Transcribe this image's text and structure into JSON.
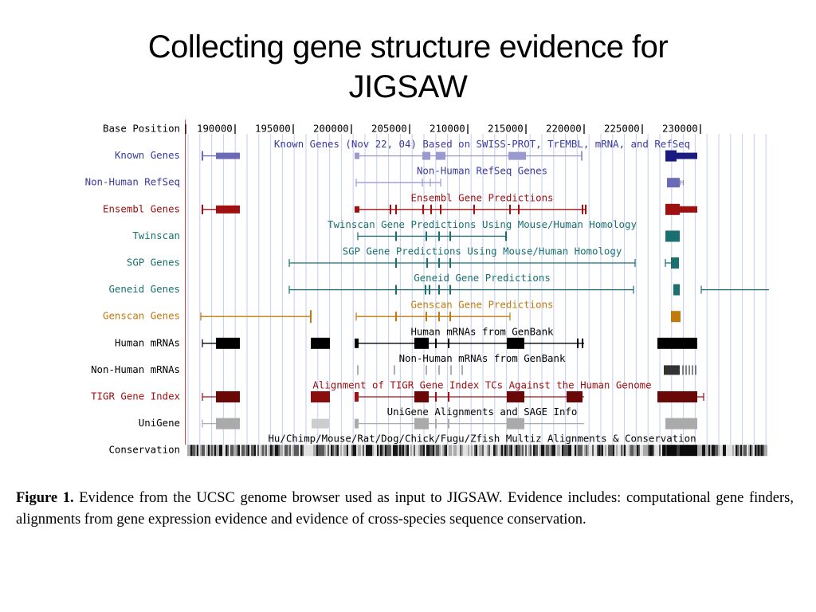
{
  "title": {
    "line1": "Collecting gene structure evidence for",
    "line2": "JIGSAW"
  },
  "browser": {
    "base_position_label": "Base Position",
    "positions": [
      "190000",
      "195000",
      "200000",
      "205000",
      "210000",
      "215000",
      "220000",
      "225000",
      "230000"
    ],
    "tracks": [
      {
        "key": "known",
        "label": "Known Genes",
        "color": "#3a3a9e",
        "center": "Known Genes (Nov 22, 04) Based on SWISS-PROT, TrEMBL, mRNA, and RefSeq"
      },
      {
        "key": "nonhuman_refseq",
        "label": "Non-Human RefSeq",
        "color": "#3a3a9e",
        "center": "Non-Human RefSeq Genes"
      },
      {
        "key": "ensembl",
        "label": "Ensembl Genes",
        "color": "#a01010",
        "center": "Ensembl Gene Predictions"
      },
      {
        "key": "twinscan",
        "label": "Twinscan",
        "color": "#1a7070",
        "center": "Twinscan Gene Predictions Using Mouse/Human Homology"
      },
      {
        "key": "sgp",
        "label": "SGP Genes",
        "color": "#1a7070",
        "center": "SGP Gene Predictions Using Mouse/Human Homology"
      },
      {
        "key": "geneid",
        "label": "Geneid Genes",
        "color": "#1a7070",
        "center": "Geneid Gene Predictions"
      },
      {
        "key": "genscan",
        "label": "Genscan Genes",
        "color": "#c07a10",
        "center": "Genscan Gene Predictions"
      },
      {
        "key": "human_mrna",
        "label": "Human mRNAs",
        "color": "#000000",
        "center": "Human mRNAs from GenBank"
      },
      {
        "key": "nonhuman_mrna",
        "label": "Non-Human mRNAs",
        "color": "#000000",
        "center": "Non-Human mRNAs from GenBank"
      },
      {
        "key": "tigr",
        "label": "TIGR Gene Index",
        "color": "#a01010",
        "center": "Alignment of TIGR Gene Index TCs Against the Human Genome"
      },
      {
        "key": "unigene",
        "label": "UniGene",
        "color": "#000000",
        "center": "UniGene Alignments and SAGE Info"
      },
      {
        "key": "conservation",
        "label": "Conservation",
        "color": "#000000",
        "center": "Hu/Chimp/Mouse/Rat/Dog/Chick/Fugu/Zfish Multiz Alignments & Conservation"
      }
    ]
  },
  "caption": {
    "lead": "Figure 1.",
    "text": " Evidence from the UCSC genome browser used as input to JIGSAW. Evidence includes: computational gene finders, alignments from gene expression evidence and  evidence of cross-species sequence conservation."
  }
}
